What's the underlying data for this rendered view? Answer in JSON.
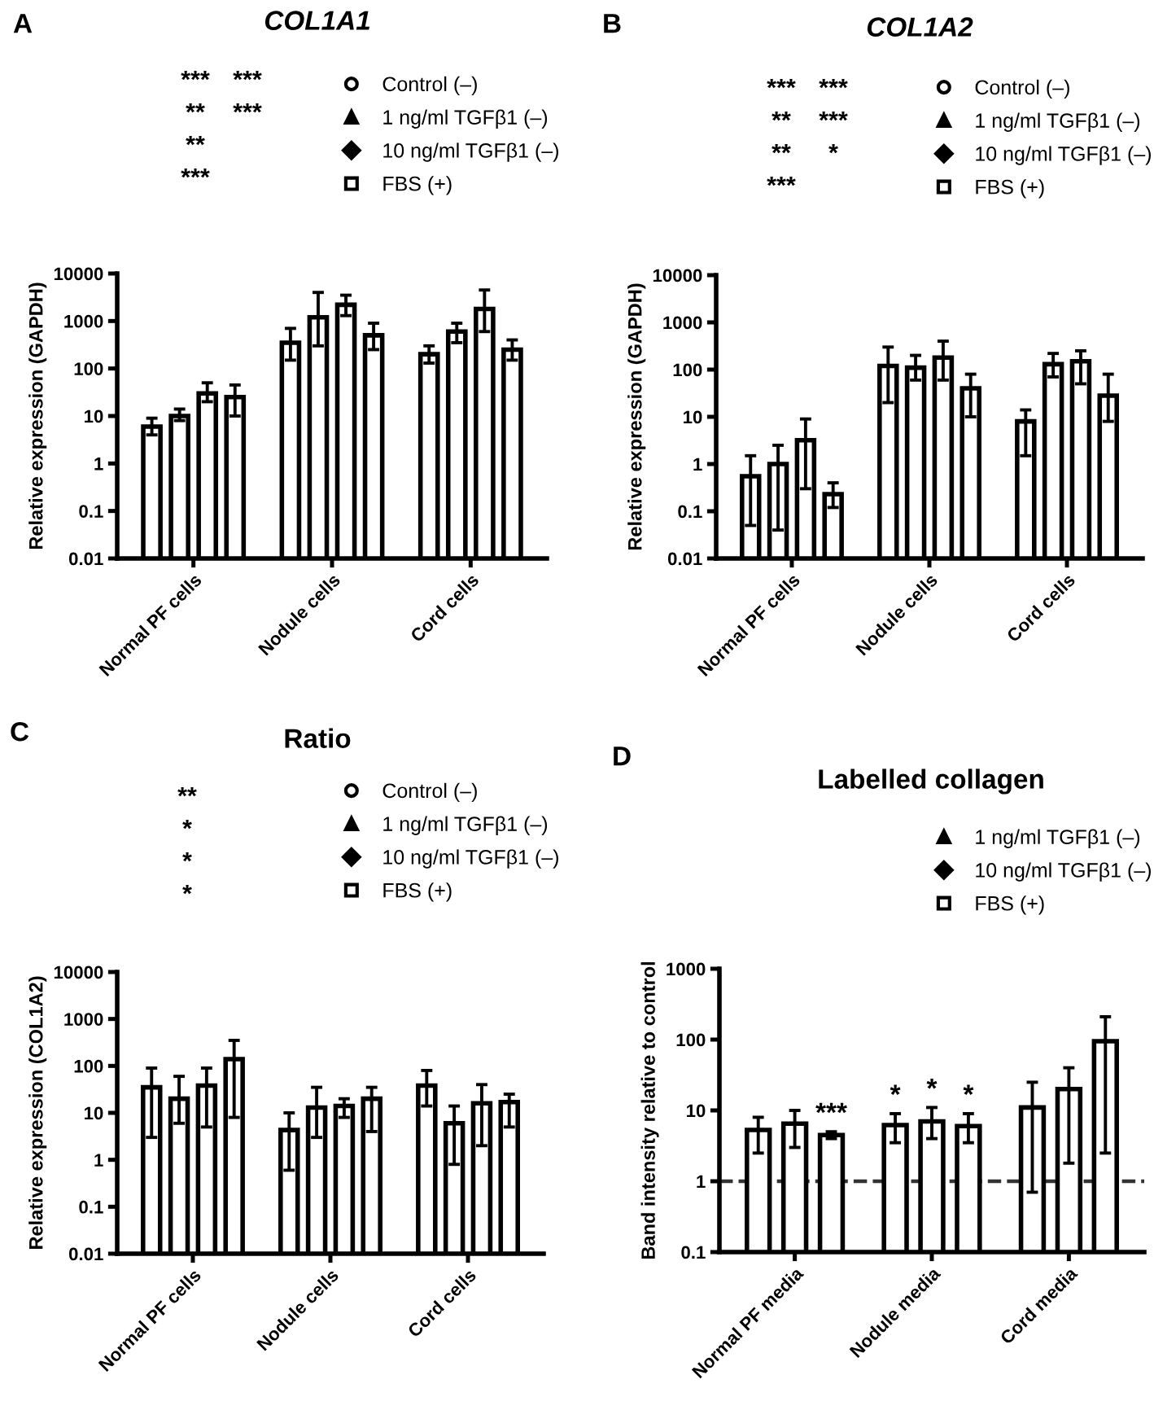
{
  "chart_data": [
    {
      "type": "bar",
      "subtitle": "A",
      "title": "COL1A1",
      "ylabel": "Relative expression (GAPDH)",
      "categories": [
        "Normal PF cells",
        "Nodule cells",
        "Cord cells"
      ],
      "log": true,
      "ylim": [
        0.01,
        10000
      ],
      "yticks": [
        0.01,
        0.1,
        1,
        10,
        100,
        1000,
        10000
      ],
      "legend": "top",
      "grid": false,
      "annotations": [
        "***",
        "**",
        "**",
        "***",
        "***",
        "***"
      ],
      "series": [
        {
          "name": "Control (–)",
          "color": "#ffffff",
          "marker": "circle",
          "values": [
            6,
            350,
            200
          ],
          "errors": [
            [
              4,
              9
            ],
            [
              150,
              700
            ],
            [
              130,
              300
            ]
          ]
        },
        {
          "name": "1 ng/ml TGFβ1 (–)",
          "color": "#ffffff",
          "marker": "triangle",
          "values": [
            10,
            1200,
            600
          ],
          "errors": [
            [
              8,
              14
            ],
            [
              300,
              4000
            ],
            [
              350,
              900
            ]
          ]
        },
        {
          "name": "10 ng/ml TGFβ1 (–)",
          "color": "#ffffff",
          "marker": "diamond",
          "values": [
            30,
            2200,
            1800
          ],
          "errors": [
            [
              20,
              50
            ],
            [
              1300,
              3500
            ],
            [
              600,
              4500
            ]
          ]
        },
        {
          "name": "FBS (+)",
          "color": "#ffffff",
          "marker": "square",
          "values": [
            25,
            500,
            250
          ],
          "errors": [
            [
              10,
              45
            ],
            [
              250,
              900
            ],
            [
              150,
              400
            ]
          ]
        }
      ]
    },
    {
      "type": "bar",
      "subtitle": "B",
      "title": "COL1A2",
      "ylabel": "Relative expression (GAPDH)",
      "categories": [
        "Normal PF cells",
        "Nodule cells",
        "Cord cells"
      ],
      "log": true,
      "ylim": [
        0.01,
        10000
      ],
      "yticks": [
        0.01,
        0.1,
        1,
        10,
        100,
        1000,
        10000
      ],
      "legend": "top",
      "grid": false,
      "annotations": [
        "***",
        "**",
        "**",
        "***",
        "***",
        "***",
        "*"
      ],
      "series": [
        {
          "name": "Control (–)",
          "color": "#ffffff",
          "marker": "circle",
          "values": [
            0.55,
            120,
            8
          ],
          "errors": [
            [
              0.05,
              1.5
            ],
            [
              20,
              300
            ],
            [
              1.5,
              14
            ]
          ]
        },
        {
          "name": "1 ng/ml TGFβ1 (–)",
          "color": "#ffffff",
          "marker": "triangle",
          "values": [
            1.0,
            110,
            130
          ],
          "errors": [
            [
              0.04,
              2.5
            ],
            [
              60,
              200
            ],
            [
              70,
              220
            ]
          ]
        },
        {
          "name": "10 ng/ml TGFβ1 (–)",
          "color": "#ffffff",
          "marker": "diamond",
          "values": [
            3.2,
            180,
            150
          ],
          "errors": [
            [
              0.3,
              9
            ],
            [
              60,
              400
            ],
            [
              50,
              250
            ]
          ]
        },
        {
          "name": "FBS (+)",
          "color": "#ffffff",
          "marker": "square",
          "values": [
            0.23,
            40,
            28
          ],
          "errors": [
            [
              0.12,
              0.4
            ],
            [
              10,
              80
            ],
            [
              8,
              80
            ]
          ]
        }
      ]
    },
    {
      "type": "bar",
      "subtitle": "C",
      "title": "Ratio",
      "ylabel": "Relative expression (COL1A2)",
      "categories": [
        "Normal PF cells",
        "Nodule cells",
        "Cord cells"
      ],
      "log": true,
      "ylim": [
        0.01,
        10000
      ],
      "yticks": [
        0.01,
        0.1,
        1,
        10,
        100,
        1000,
        10000
      ],
      "legend": "top",
      "grid": false,
      "annotations": [
        "**",
        "*",
        "*",
        "*"
      ],
      "series": [
        {
          "name": "Control (–)",
          "color": "#ffffff",
          "marker": "circle",
          "values": [
            35,
            4.3,
            38
          ],
          "errors": [
            [
              3,
              90
            ],
            [
              0.6,
              10
            ],
            [
              14,
              80
            ]
          ]
        },
        {
          "name": "1 ng/ml TGFβ1 (–)",
          "color": "#ffffff",
          "marker": "triangle",
          "values": [
            20,
            13,
            6
          ],
          "errors": [
            [
              6,
              60
            ],
            [
              3,
              35
            ],
            [
              0.8,
              14
            ]
          ]
        },
        {
          "name": "10 ng/ml TGFβ1 (–)",
          "color": "#ffffff",
          "marker": "diamond",
          "values": [
            38,
            14,
            16
          ],
          "errors": [
            [
              5,
              90
            ],
            [
              8,
              20
            ],
            [
              2,
              40
            ]
          ]
        },
        {
          "name": "FBS (+)",
          "color": "#ffffff",
          "marker": "square",
          "values": [
            140,
            20,
            17
          ],
          "errors": [
            [
              8,
              350
            ],
            [
              4,
              35
            ],
            [
              5,
              25
            ]
          ]
        }
      ]
    },
    {
      "type": "bar",
      "subtitle": "D",
      "title": "Labelled collagen",
      "ylabel": "Band intensity relative to control",
      "categories": [
        "Normal PF media",
        "Nodule media",
        "Cord media"
      ],
      "log": true,
      "ylim": [
        0.1,
        1000
      ],
      "yticks": [
        0.1,
        1,
        10,
        100,
        1000
      ],
      "legend": "top",
      "grid": false,
      "ref_lines": [
        {
          "axis": "y",
          "value": 1,
          "line_style": "dashed",
          "color": "#333333"
        }
      ],
      "series": [
        {
          "name": "1 ng/ml TGFβ1 (–)",
          "color": "#ffffff",
          "marker": "triangle",
          "values": [
            5.3,
            6.2,
            11
          ],
          "errors": [
            [
              2.5,
              8
            ],
            [
              3.5,
              9
            ],
            [
              0.7,
              25
            ]
          ],
          "value_labels": [
            null,
            "*",
            null
          ]
        },
        {
          "name": "10 ng/ml TGFβ1 (–)",
          "color": "#ffffff",
          "marker": "diamond",
          "values": [
            6.5,
            7,
            20
          ],
          "errors": [
            [
              3,
              10
            ],
            [
              4,
              11
            ],
            [
              1.8,
              40
            ]
          ],
          "value_labels": [
            null,
            "*",
            null
          ]
        },
        {
          "name": "FBS (+)",
          "color": "#ffffff",
          "marker": "square",
          "values": [
            4.5,
            6,
            95
          ],
          "errors": [
            [
              4,
              5
            ],
            [
              3.5,
              9
            ],
            [
              2.5,
              210
            ]
          ],
          "value_labels": [
            "***",
            "*",
            null
          ]
        }
      ]
    }
  ]
}
